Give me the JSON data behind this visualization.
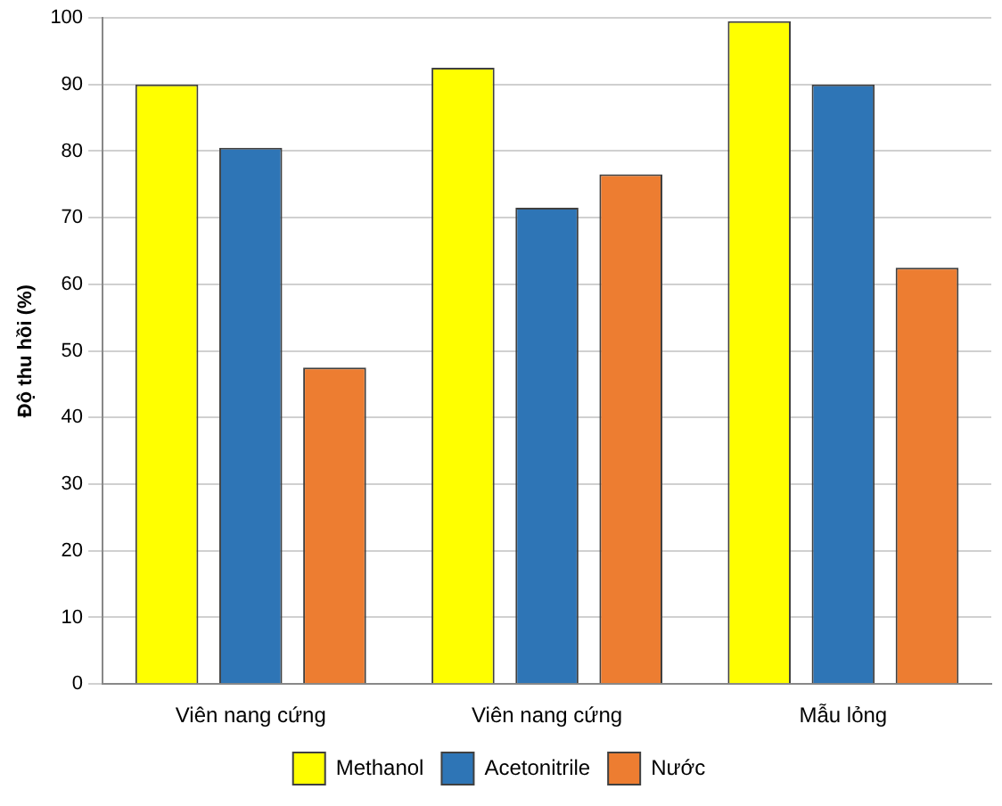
{
  "chart_data": {
    "type": "bar",
    "ylabel": "Độ thu hồi (%)",
    "categories": [
      "Viên nang cứng",
      "Viên nang cứng",
      "Mẫu lỏng"
    ],
    "series": [
      {
        "name": "Methanol",
        "color": "#ffff00",
        "values": [
          90,
          92.5,
          99.5
        ]
      },
      {
        "name": "Acetonitrile",
        "color": "#2e75b6",
        "values": [
          80.5,
          71.5,
          90
        ]
      },
      {
        "name": "Nước",
        "color": "#ed7d31",
        "values": [
          47.5,
          76.5,
          62.5
        ]
      }
    ],
    "ylim": [
      0,
      100
    ],
    "yticks": [
      0,
      10,
      20,
      30,
      40,
      50,
      60,
      70,
      80,
      90,
      100
    ],
    "grid": "y",
    "legend": "bottom"
  }
}
